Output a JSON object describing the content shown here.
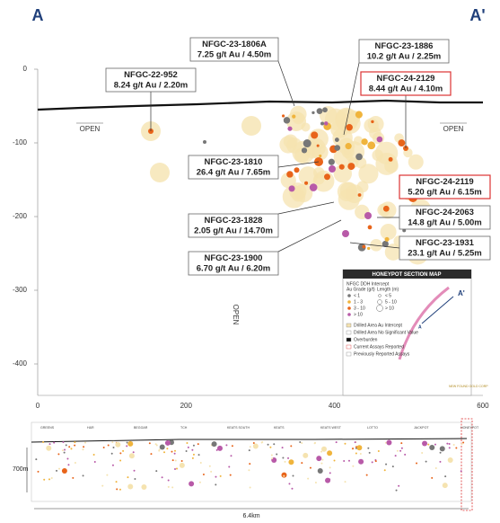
{
  "header": {
    "left_label": "A",
    "right_label": "A'"
  },
  "axes": {
    "y_ticks": [
      "0",
      "-100",
      "-200",
      "-300",
      "-400"
    ],
    "x_ticks": [
      "0",
      "200",
      "400",
      "600"
    ]
  },
  "annotations": {
    "open_left": "OPEN",
    "open_right": "OPEN",
    "open_bottom": "OPEN"
  },
  "callouts": [
    {
      "hole": "NFGC-23-1806A",
      "grade": "7.25 g/t Au / 4.50m"
    },
    {
      "hole": "NFGC-22-952",
      "grade": "8.24 g/t Au / 2.20m"
    },
    {
      "hole": "NFGC-23-1886",
      "grade": "10.2 g/t Au / 2.25m"
    },
    {
      "hole": "NFGC-24-2129",
      "grade": "8.44 g/t Au / 4.10m"
    },
    {
      "hole": "NFGC-23-1810",
      "grade": "26.4 g/t Au / 7.65m"
    },
    {
      "hole": "NFGC-24-2119",
      "grade": "5.20 g/t Au / 6.15m"
    },
    {
      "hole": "NFGC-24-2063",
      "grade": "14.8 g/t Au / 5.00m"
    },
    {
      "hole": "NFGC-23-1828",
      "grade": "2.05 g/t Au / 14.70m"
    },
    {
      "hole": "NFGC-23-1931",
      "grade": "23.1 g/t Au / 5.25m"
    },
    {
      "hole": "NFGC-23-1900",
      "grade": "6.70 g/t Au / 6.20m"
    }
  ],
  "inset": {
    "title": "HONEYPOT SECTION MAP",
    "intercept_heading": "NFGC DDH Intercept",
    "grade_heading": "Au Grade (g/t)",
    "length_heading": "Length (m)",
    "grades": [
      "< 1",
      "1 - 3",
      "3 - 10",
      "> 10"
    ],
    "lengths": [
      "< 5",
      "5 - 10",
      "> 10"
    ],
    "items": [
      "Drilled Area Au Intercept",
      "Drilled Area No Significant Value",
      "Overburden",
      "Current Assays Reported",
      "Previously Reported Assays"
    ],
    "map_labels": [
      "A",
      "A'"
    ],
    "logo": "NEW FOUND GOLD CORP"
  },
  "long_section": {
    "depth": "700m",
    "length": "6.4km",
    "zones": [
      "GREENS",
      "H&R",
      "BEGGAR",
      "TCH",
      "KEATS SOUTH",
      "KEATS",
      "KEATS WEST",
      "LOTTO",
      "JACKPOT",
      "HONEYPOT"
    ]
  }
}
